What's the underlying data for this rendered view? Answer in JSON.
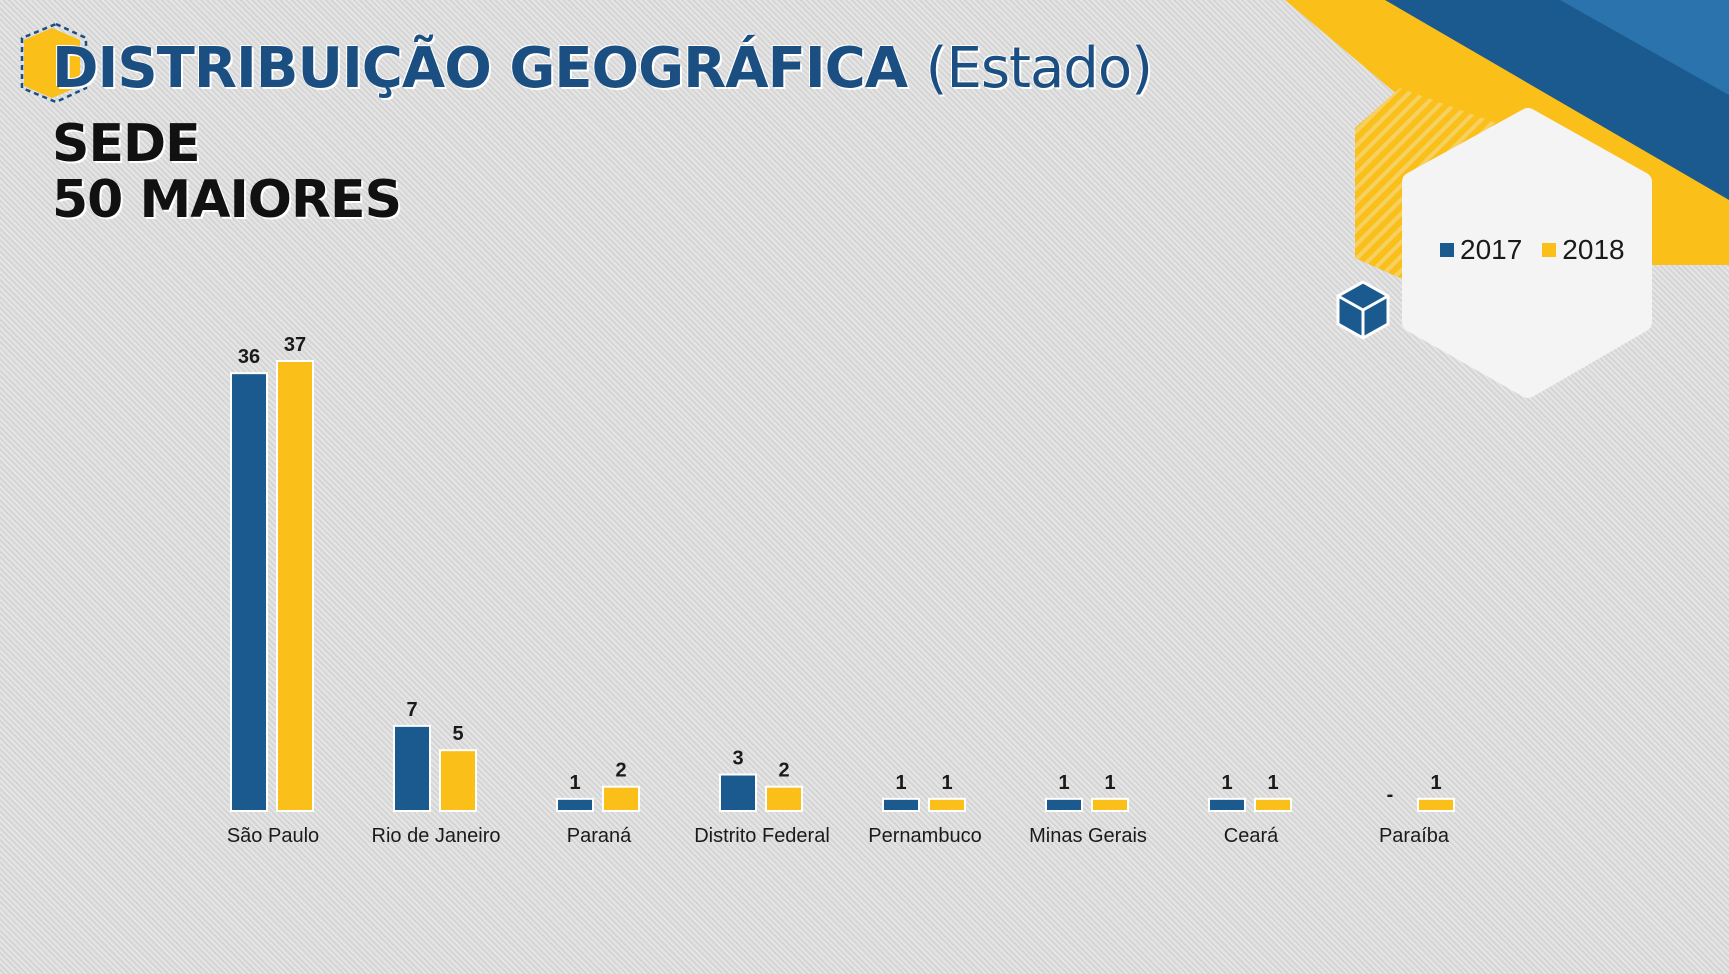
{
  "header": {
    "title_main": "DISTRIBUIÇÃO GEOGRÁFICA",
    "title_suffix": "(Estado)",
    "subtitle_line1": "SEDE",
    "subtitle_line2": "50 MAIORES"
  },
  "colors": {
    "series_2017": "#1b5a8e",
    "series_2018": "#fbbf19",
    "accent_blue": "#1b4f82"
  },
  "icons": [
    "hexagon-outline-icon",
    "cube-icon"
  ],
  "chart_data": {
    "type": "bar",
    "categories": [
      "São Paulo",
      "Rio de Janeiro",
      "Paraná",
      "Distrito Federal",
      "Pernambuco",
      "Minas Gerais",
      "Ceará",
      "Paraíba"
    ],
    "series": [
      {
        "name": "2017",
        "values": [
          36,
          7,
          1,
          3,
          1,
          1,
          1,
          0
        ],
        "labels": [
          "36",
          "7",
          "1",
          "3",
          "1",
          "1",
          "1",
          "-"
        ]
      },
      {
        "name": "2018",
        "values": [
          37,
          5,
          2,
          2,
          1,
          1,
          1,
          1
        ],
        "labels": [
          "37",
          "5",
          "2",
          "2",
          "1",
          "1",
          "1",
          "1"
        ]
      }
    ],
    "ylim": [
      0,
      37
    ],
    "grid": false,
    "legend_position": "top-right"
  }
}
